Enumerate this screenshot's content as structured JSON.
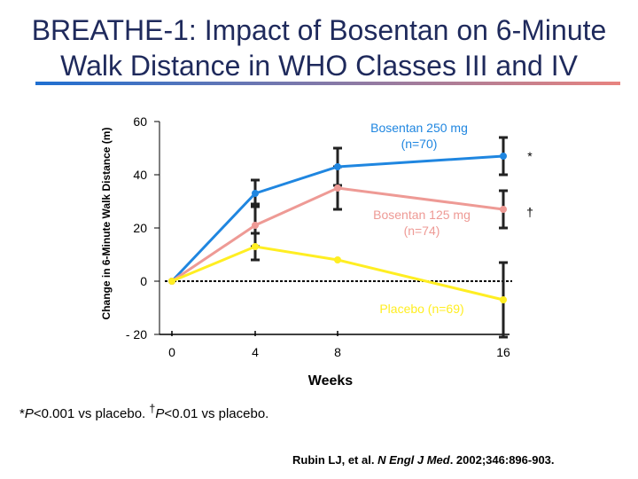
{
  "slide": {
    "title_line1": "BREATHE-1: Impact of Bosentan on 6-Minute",
    "title_line2": "Walk Distance in WHO Classes III and IV",
    "footnote_star": "*",
    "footnote_p1": "P",
    "footnote_text1": "<0.001 vs placebo. ",
    "footnote_dagger": "†",
    "footnote_p2": "P",
    "footnote_text2": "<0.01 vs placebo.",
    "citation_authors": "Rubin LJ, et al. ",
    "citation_journal": "N Engl J Med",
    "citation_rest": ". 2002;346:896-903."
  },
  "colors": {
    "title_bar_start": "#1f6fd1",
    "title_bar_end": "#e8837f"
  },
  "chart_data": {
    "type": "line",
    "title": "",
    "xlabel": "Weeks",
    "ylabel": "Change in 6-Minute Walk Distance (m)",
    "x_ticks": [
      0,
      4,
      8,
      16
    ],
    "y_ticks": [
      60,
      40,
      20,
      0,
      -20
    ],
    "ylim": [
      -20,
      60
    ],
    "series": [
      {
        "name": "Bosentan 250 mg",
        "label": "Bosentan 250 mg\n(n=70)",
        "color": "#1f86e0",
        "x": [
          0,
          4,
          8,
          16
        ],
        "y": [
          0,
          33,
          43,
          47
        ],
        "error": [
          0,
          5,
          7,
          7
        ],
        "significance": "*"
      },
      {
        "name": "Bosentan 125 mg",
        "label": "Bosentan 125 mg\n(n=74)",
        "color": "#ee9a95",
        "x": [
          0,
          4,
          8,
          16
        ],
        "y": [
          0,
          21,
          35,
          27
        ],
        "error": [
          0,
          8,
          8,
          7
        ],
        "significance": "†"
      },
      {
        "name": "Placebo",
        "label": "Placebo (n=69)",
        "color": "#ffee22",
        "x": [
          0,
          4,
          8,
          16
        ],
        "y": [
          0,
          13,
          8,
          -7
        ],
        "error": [
          0,
          5,
          0,
          14
        ],
        "significance": ""
      }
    ],
    "reference_line": 0
  }
}
